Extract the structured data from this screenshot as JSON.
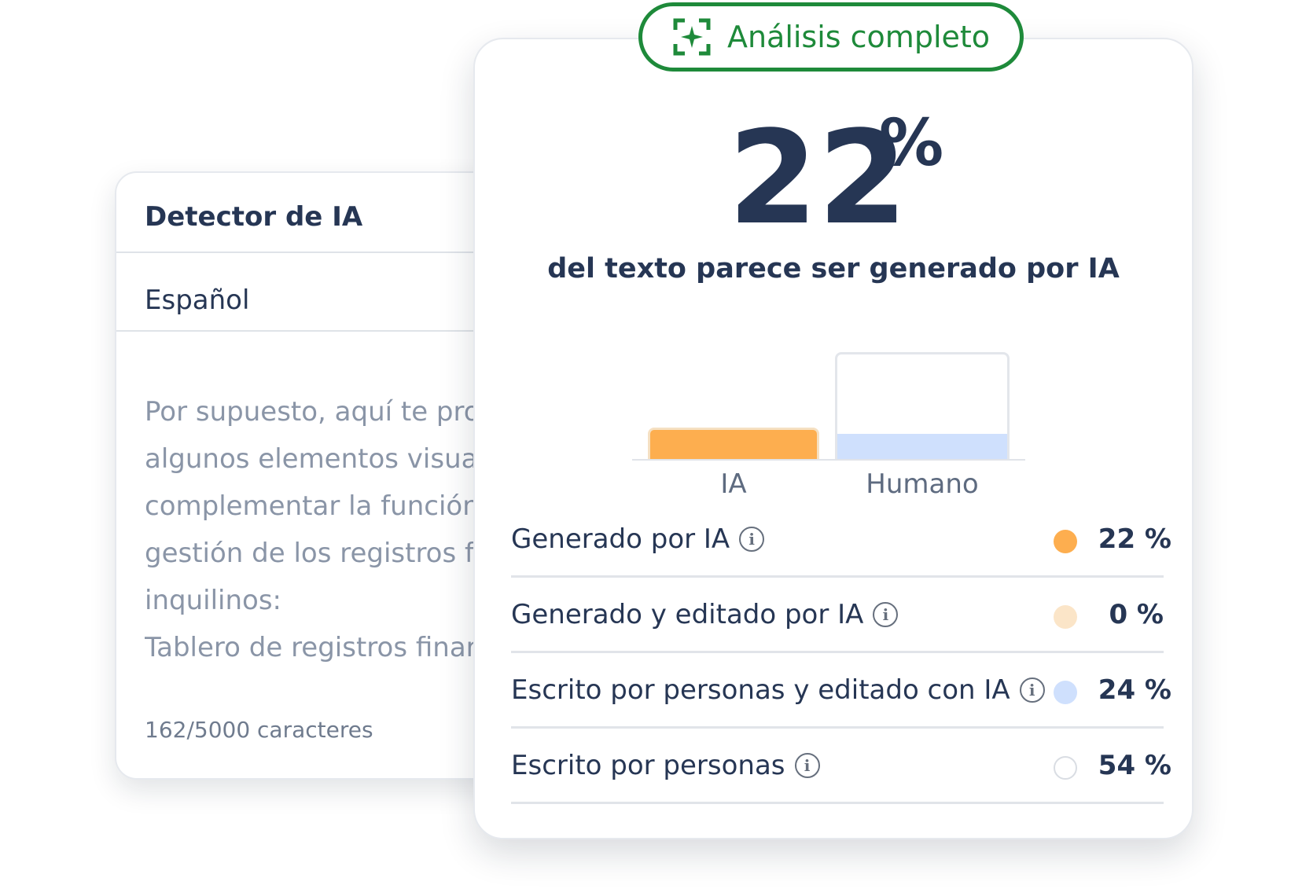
{
  "input_card": {
    "title": "Detector de IA",
    "language": "Español",
    "text_lines": [
      "Por supuesto, aquí te pro",
      "algunos elementos visual",
      "complementar la función",
      "gestión de los registros fi",
      "inquilinos:",
      "Tablero de registros finar"
    ],
    "char_count": "162/5000 caracteres"
  },
  "result_card": {
    "badge": {
      "label": "Análisis completo",
      "icon": "sparkle-frame-icon",
      "color": "#1e8a3a"
    },
    "percentage": "22",
    "percent_sign": "%",
    "subtitle": "del texto parece ser generado por IA",
    "chart_data": {
      "type": "bar",
      "categories": [
        "IA",
        "Humano"
      ],
      "values": [
        22,
        24
      ],
      "max": 100,
      "colors": [
        "#fdae4f",
        "#cfe0fd"
      ]
    },
    "breakdown": [
      {
        "label": "Generado por IA",
        "value": "22 %",
        "color": "#fdae4f",
        "icon": "info-icon"
      },
      {
        "label": "Generado y editado por IA",
        "value": "0 %",
        "color": "#fbe5c8",
        "icon": "info-icon"
      },
      {
        "label": "Escrito por personas y editado con IA",
        "value": "24 %",
        "color": "#cfe0fd",
        "icon": "info-icon"
      },
      {
        "label": "Escrito por personas",
        "value": "54 %",
        "color": "#ffffff",
        "icon": "info-icon"
      }
    ]
  }
}
